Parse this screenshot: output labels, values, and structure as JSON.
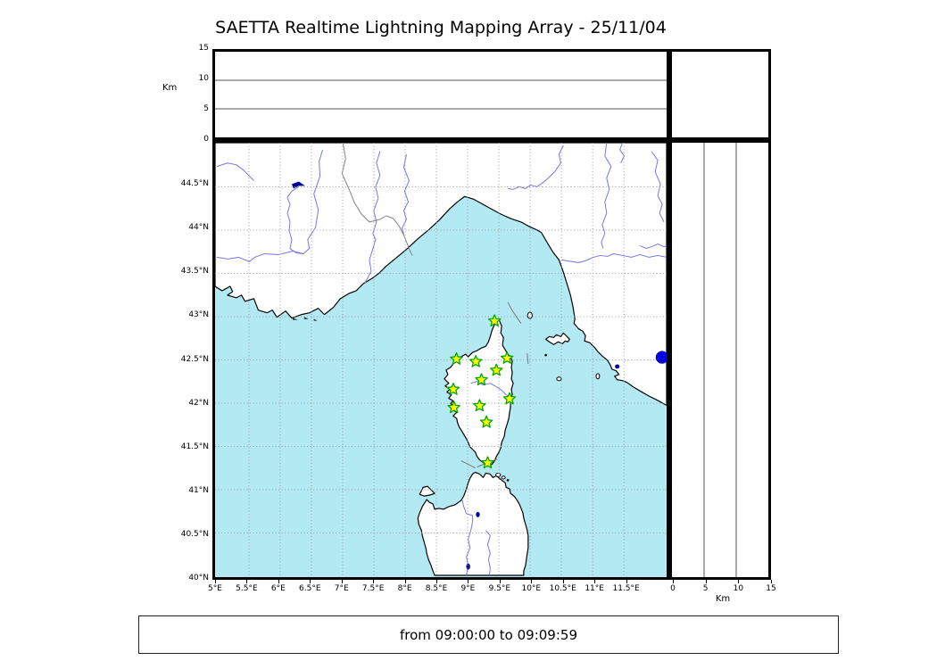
{
  "title": "SAETTA Realtime Lightning Mapping Array - 25/11/04",
  "status_text": "from 09:00:00 to 09:09:59",
  "altitude_axis": {
    "unit_label": "Km",
    "max": 15,
    "ticks": [
      {
        "v": 0,
        "label": "0"
      },
      {
        "v": 5,
        "label": "5"
      },
      {
        "v": 10,
        "label": "10"
      },
      {
        "v": 15,
        "label": "15"
      }
    ]
  },
  "map": {
    "lon_min": 4.958,
    "lon_max": 12.183,
    "lat_min": 39.99,
    "lat_max": 45.01,
    "lon_ticks": [
      {
        "v": 5,
        "label": "5°E"
      },
      {
        "v": 5.5,
        "label": "5.5°E"
      },
      {
        "v": 6,
        "label": "6°E"
      },
      {
        "v": 6.5,
        "label": "6.5°E"
      },
      {
        "v": 7,
        "label": "7°E"
      },
      {
        "v": 7.5,
        "label": "7.5°E"
      },
      {
        "v": 8,
        "label": "8°E"
      },
      {
        "v": 8.5,
        "label": "8.5°E"
      },
      {
        "v": 9,
        "label": "9°E"
      },
      {
        "v": 9.5,
        "label": "9.5°E"
      },
      {
        "v": 10,
        "label": "10°E"
      },
      {
        "v": 10.5,
        "label": "10.5°E"
      },
      {
        "v": 11,
        "label": "11°E"
      },
      {
        "v": 11.5,
        "label": "11.5°E"
      }
    ],
    "lat_ticks": [
      {
        "v": 40,
        "label": "40°N"
      },
      {
        "v": 40.5,
        "label": "40.5°N"
      },
      {
        "v": 41,
        "label": "41°N"
      },
      {
        "v": 41.5,
        "label": "41.5°N"
      },
      {
        "v": 42,
        "label": "42°N"
      },
      {
        "v": 42.5,
        "label": "42.5°N"
      },
      {
        "v": 43,
        "label": "43°N"
      },
      {
        "v": 43.5,
        "label": "43.5°N"
      },
      {
        "v": 44,
        "label": "44°N"
      },
      {
        "v": 44.5,
        "label": "44.5°N"
      }
    ],
    "stations": [
      {
        "lon": 9.43,
        "lat": 42.95
      },
      {
        "lon": 8.82,
        "lat": 42.51
      },
      {
        "lon": 9.13,
        "lat": 42.48
      },
      {
        "lon": 9.63,
        "lat": 42.52
      },
      {
        "lon": 9.46,
        "lat": 42.38
      },
      {
        "lon": 9.22,
        "lat": 42.27
      },
      {
        "lon": 8.77,
        "lat": 42.16
      },
      {
        "lon": 9.67,
        "lat": 42.05
      },
      {
        "lon": 8.78,
        "lat": 41.95
      },
      {
        "lon": 9.19,
        "lat": 41.97
      },
      {
        "lon": 9.3,
        "lat": 41.78
      },
      {
        "lon": 9.32,
        "lat": 41.31
      }
    ],
    "source_point": {
      "lon": 12.11,
      "lat": 42.53
    }
  },
  "colors": {
    "sea": "#b2e9f3",
    "land": "#ffffff",
    "coastline": "#000000",
    "river": "#7575e8",
    "lake": "#000099",
    "grid": "#999999",
    "boundary": "#828282",
    "station_fill": "#ffff00",
    "station_stroke": "#00a400",
    "source_fill": "#0000e0"
  }
}
